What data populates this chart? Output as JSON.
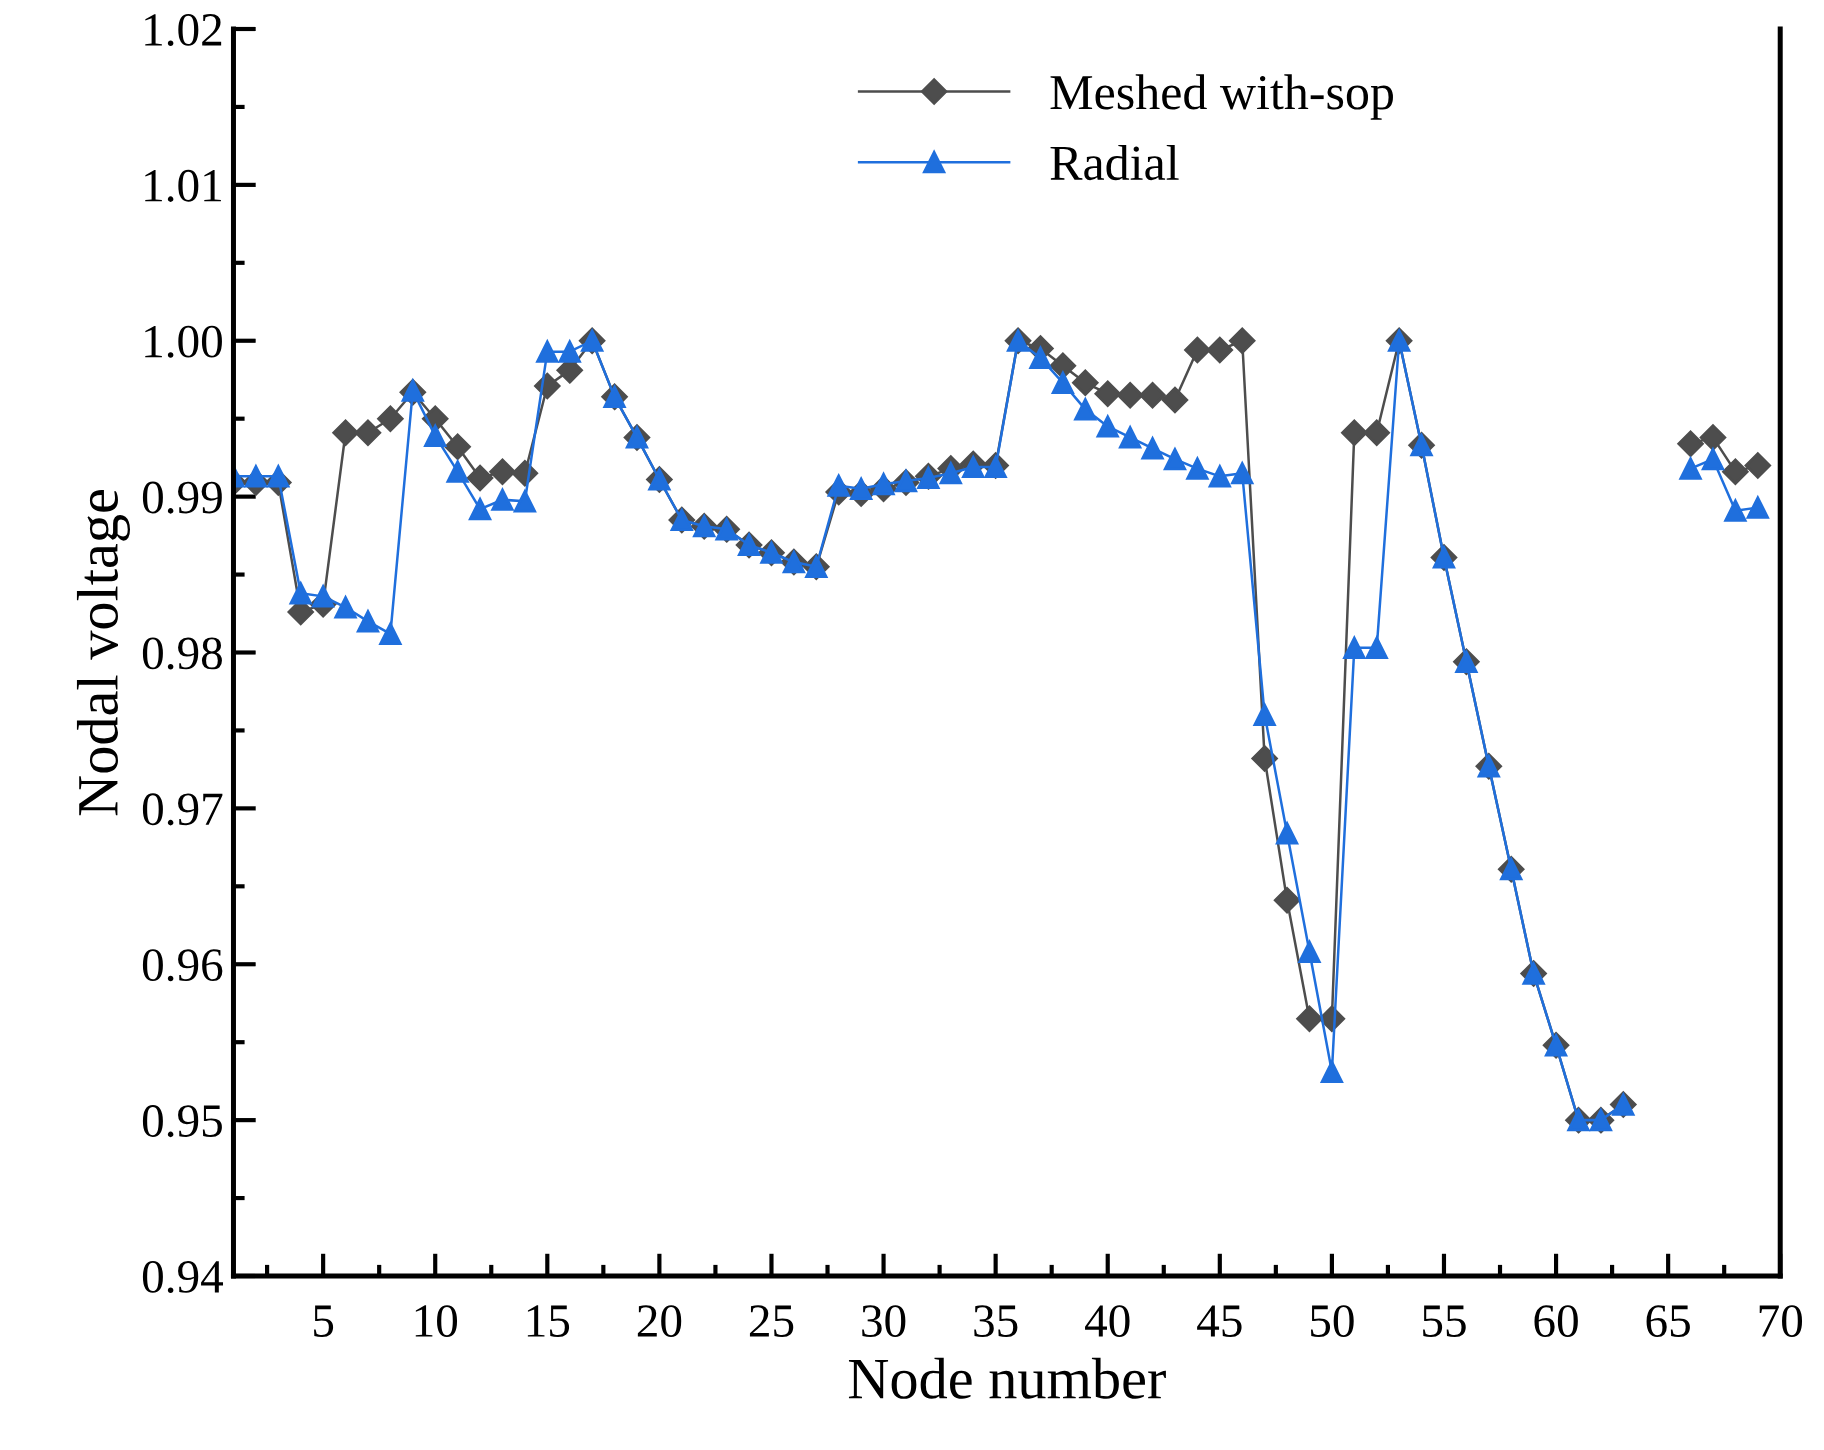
{
  "chart_data": {
    "type": "line",
    "xlabel": "Node number",
    "ylabel": "Nodal voltage",
    "x": [
      1,
      2,
      3,
      4,
      5,
      6,
      7,
      8,
      9,
      10,
      11,
      12,
      13,
      14,
      15,
      16,
      17,
      18,
      19,
      20,
      21,
      22,
      23,
      24,
      25,
      26,
      27,
      28,
      29,
      30,
      31,
      32,
      33,
      34,
      35,
      36,
      37,
      38,
      39,
      40,
      41,
      42,
      43,
      44,
      45,
      46,
      47,
      48,
      49,
      50,
      51,
      52,
      53,
      54,
      55,
      56,
      57,
      58,
      59,
      60,
      61,
      62,
      63,
      64,
      65,
      66,
      67,
      68,
      69
    ],
    "series": [
      {
        "name": "Meshed with-sop",
        "color": "#4d4d4d",
        "marker": "diamond",
        "values": [
          0.9909,
          0.9909,
          0.9909,
          0.9826,
          0.9831,
          0.9941,
          0.9941,
          0.995,
          0.9967,
          0.995,
          0.9932,
          0.9912,
          0.9916,
          0.9915,
          0.9971,
          0.9981,
          1.0,
          0.9964,
          0.9938,
          0.9911,
          0.9885,
          0.9881,
          0.9879,
          0.9869,
          0.9864,
          0.9858,
          0.9855,
          0.9903,
          0.9902,
          0.9905,
          0.9909,
          0.9913,
          0.9918,
          0.9921,
          0.992,
          1.0,
          0.9995,
          0.9984,
          0.9973,
          0.9966,
          0.9965,
          0.9965,
          0.9962,
          0.9994,
          0.9994,
          1.0,
          0.9732,
          0.9641,
          0.9565,
          0.9565,
          0.9941,
          0.9941,
          1.0,
          0.9933,
          0.9861,
          0.9794,
          0.9727,
          0.9661,
          0.9594,
          0.9548,
          0.95,
          0.95,
          0.951,
          null,
          null,
          0.9934,
          0.9938,
          0.9916,
          0.992
        ]
      },
      {
        "name": "Radial",
        "color": "#1f6fdd",
        "marker": "triangle",
        "values": [
          0.9913,
          0.9913,
          0.9913,
          0.9838,
          0.9836,
          0.9829,
          0.982,
          0.9812,
          0.9968,
          0.9939,
          0.9916,
          0.9892,
          0.9898,
          0.9897,
          0.9993,
          0.9993,
          1.0,
          0.9964,
          0.9938,
          0.9911,
          0.9885,
          0.9881,
          0.9879,
          0.9869,
          0.9864,
          0.9858,
          0.9855,
          0.9907,
          0.9905,
          0.9908,
          0.991,
          0.9912,
          0.9915,
          0.9919,
          0.9919,
          1.0,
          0.9989,
          0.9973,
          0.9956,
          0.9945,
          0.9938,
          0.9931,
          0.9924,
          0.9918,
          0.9913,
          0.9915,
          0.976,
          0.9684,
          0.9608,
          0.9531,
          0.9803,
          0.9803,
          1.0,
          0.9933,
          0.9861,
          0.9794,
          0.9727,
          0.9661,
          0.9594,
          0.9548,
          0.95,
          0.95,
          0.951,
          null,
          null,
          0.9918,
          0.9924,
          0.9891,
          0.9893
        ]
      }
    ],
    "xlim": [
      1,
      70
    ],
    "xticks": [
      5,
      10,
      15,
      20,
      25,
      30,
      35,
      40,
      45,
      50,
      55,
      60,
      65,
      70
    ],
    "ylim": [
      0.94,
      1.02
    ],
    "yticks": [
      {
        "value": 0.94,
        "label": "0.94"
      },
      {
        "value": 0.95,
        "label": "0.95"
      },
      {
        "value": 0.96,
        "label": "0.96"
      },
      {
        "value": 0.97,
        "label": "0.97"
      },
      {
        "value": 0.98,
        "label": "0.98"
      },
      {
        "value": 0.99,
        "label": "0.99"
      },
      {
        "value": 1.0,
        "label": "1.00"
      },
      {
        "value": 1.01,
        "label": "1.01"
      },
      {
        "value": 1.02,
        "label": "1.02"
      }
    ],
    "grid": false,
    "legend": "top right",
    "line_style": "solid"
  }
}
